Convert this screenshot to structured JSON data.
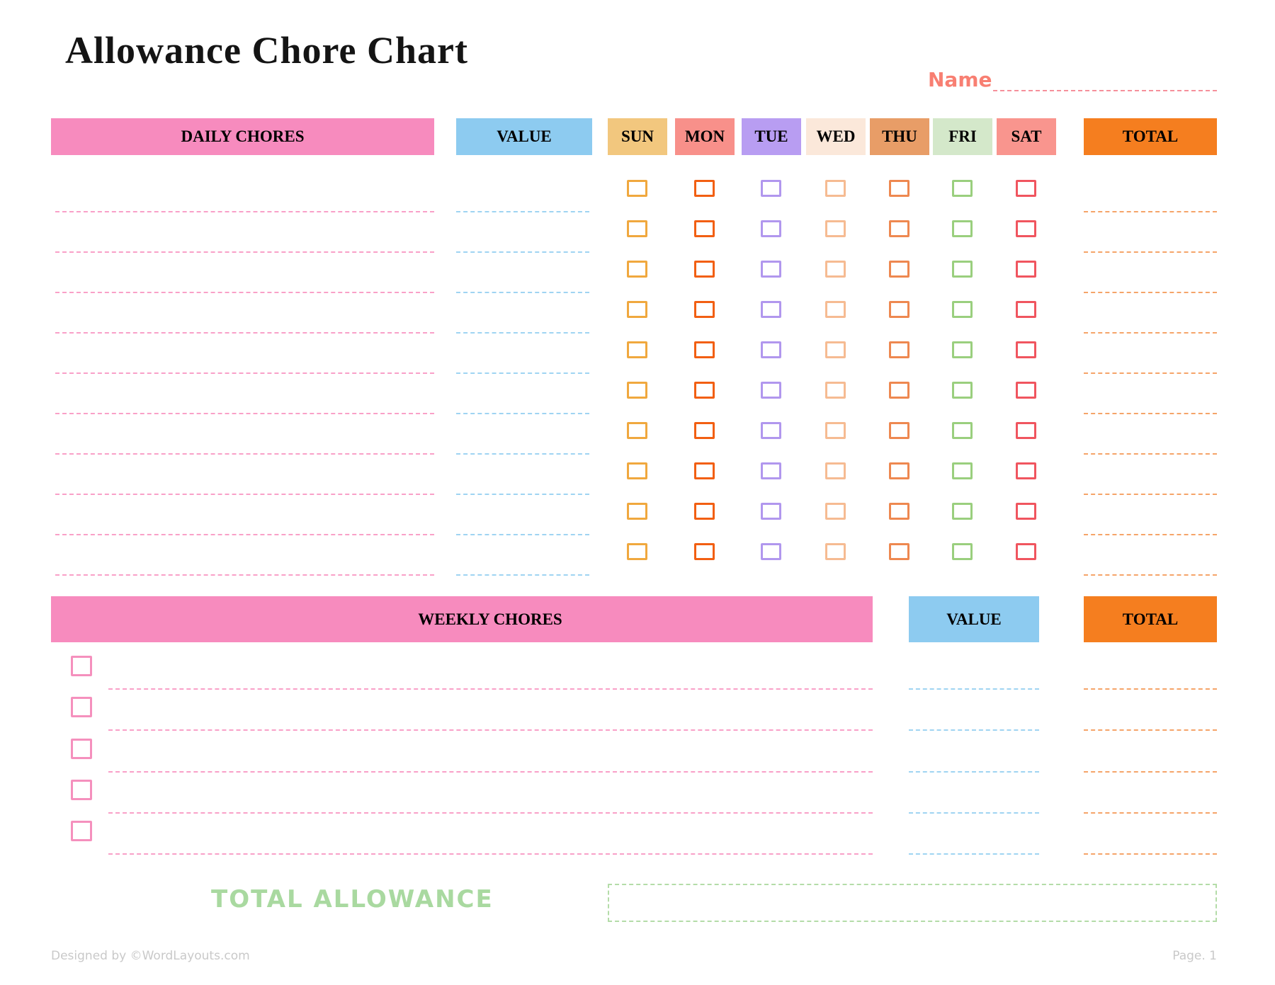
{
  "page": {
    "title": "Allowance Chore Chart",
    "name_label": "Name",
    "total_allowance_label": "TOTAL ALLOWANCE",
    "footer_left": "Designed by ©WordLayouts.com",
    "footer_right": "Page. 1"
  },
  "colors": {
    "header_pink": "#F78BBE",
    "header_blue": "#8DCBF0",
    "header_orange": "#F57E1F",
    "name_accent": "#F87F72",
    "green_accent": "#A9D9A0",
    "weekly_checkbox": "#F590BD",
    "daily_line_pink": "#F9A0C8",
    "value_line_blue": "#9FD4F2",
    "total_line_orange": "#F5A469",
    "footer_gray": "#C9C9C9"
  },
  "daily": {
    "header": "DAILY CHORES",
    "value_header": "VALUE",
    "total_header": "TOTAL",
    "rows": 10,
    "days": [
      {
        "label": "SUN",
        "header_bg": "#F2C77E",
        "box_border": "#F0A83E"
      },
      {
        "label": "MON",
        "header_bg": "#F8908A",
        "box_border": "#F25F12"
      },
      {
        "label": "TUE",
        "header_bg": "#B89DF2",
        "box_border": "#B197EE"
      },
      {
        "label": "WED",
        "header_bg": "#FBE8DA",
        "box_border": "#F6BB92"
      },
      {
        "label": "THU",
        "header_bg": "#E89D67",
        "box_border": "#EE8850"
      },
      {
        "label": "FRI",
        "header_bg": "#D4E8CA",
        "box_border": "#9ACF7E"
      },
      {
        "label": "SAT",
        "header_bg": "#F9958E",
        "box_border": "#F0555F"
      }
    ]
  },
  "weekly": {
    "header": "WEEKLY CHORES",
    "value_header": "VALUE",
    "total_header": "TOTAL",
    "rows": 5
  }
}
